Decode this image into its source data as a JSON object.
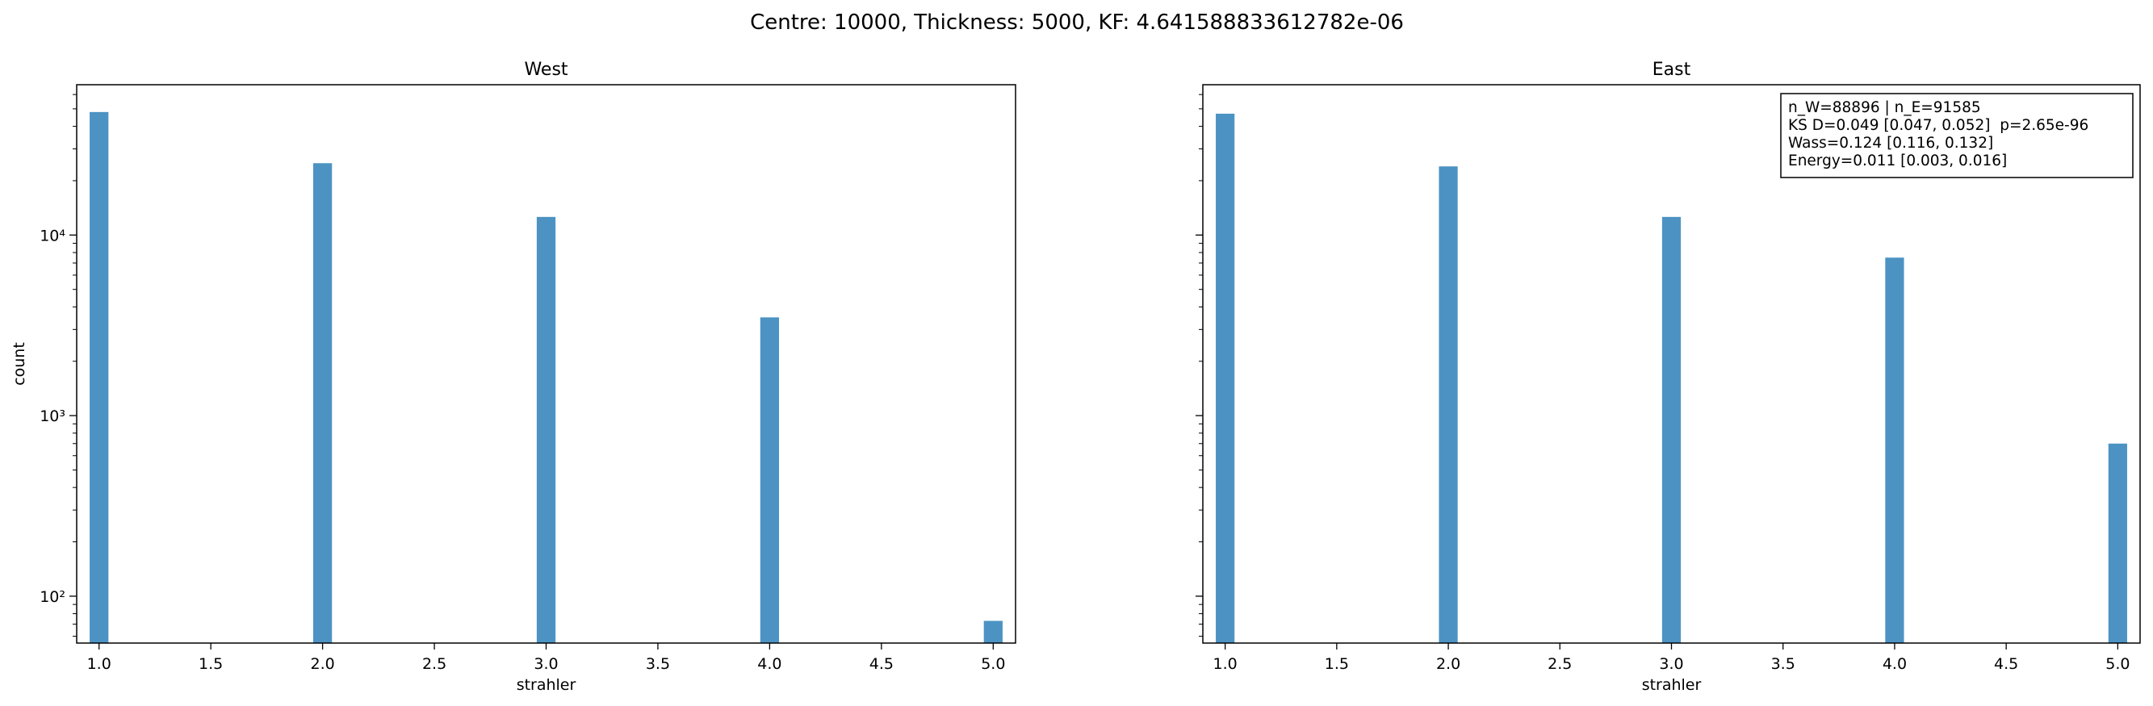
{
  "suptitle": "Centre: 10000, Thickness: 5000, KF: 4.641588833612782e-06",
  "chart_data": [
    {
      "type": "bar",
      "title": "West",
      "xlabel": "strahler",
      "ylabel": "count",
      "yscale": "log",
      "xlim": [
        0.9,
        5.1
      ],
      "ylim": [
        55,
        68000
      ],
      "x": [
        1,
        2,
        3,
        4,
        5
      ],
      "values": [
        48000,
        25000,
        12600,
        3500,
        73
      ],
      "color": "#4c93c3",
      "xticks": [
        "1.0",
        "1.5",
        "2.0",
        "2.5",
        "3.0",
        "3.5",
        "4.0",
        "4.5",
        "5.0"
      ],
      "yticks": [
        "10²",
        "10³",
        "10⁴"
      ],
      "grid": false
    },
    {
      "type": "bar",
      "title": "East",
      "xlabel": "strahler",
      "ylabel": "",
      "yscale": "log",
      "xlim": [
        0.9,
        5.1
      ],
      "ylim": [
        55,
        68000
      ],
      "x": [
        1,
        2,
        3,
        4,
        5
      ],
      "values": [
        47000,
        24000,
        12600,
        7500,
        700
      ],
      "color": "#4c93c3",
      "xticks": [
        "1.0",
        "1.5",
        "2.0",
        "2.5",
        "3.0",
        "3.5",
        "4.0",
        "4.5",
        "5.0"
      ],
      "yticks": [],
      "grid": false,
      "annotation": [
        "n_W=88896 | n_E=91585",
        "KS D=0.049 [0.047, 0.052]  p=2.65e-96",
        "Wass=0.124 [0.116, 0.132]",
        "Energy=0.011 [0.003, 0.016]"
      ],
      "annotation_position": "top-right"
    }
  ]
}
